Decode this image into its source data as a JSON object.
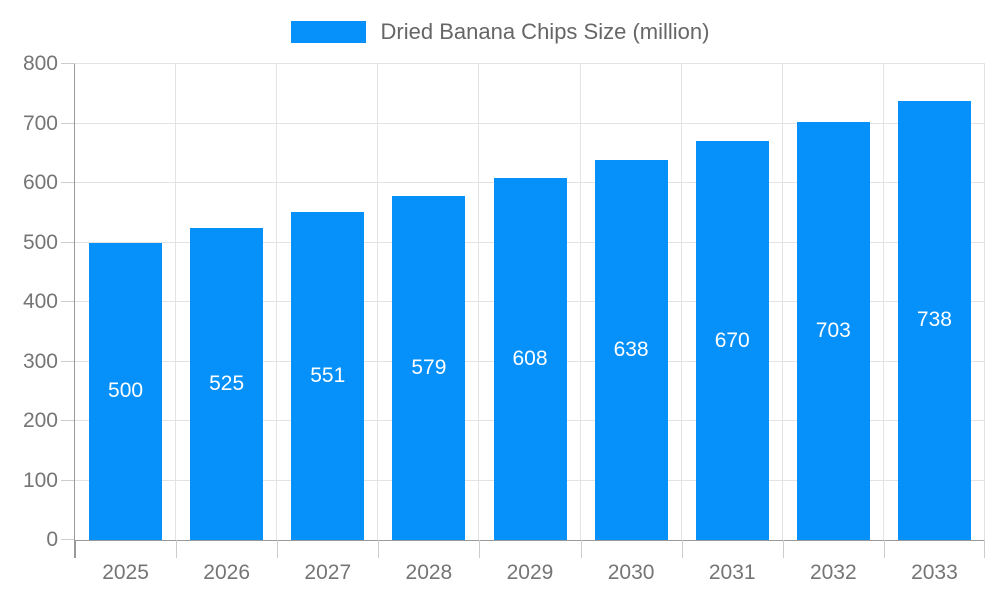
{
  "legend": {
    "label": "Dried Banana Chips Size (million)"
  },
  "chart_data": {
    "type": "bar",
    "title": "Dried Banana Chips Size (million)",
    "series_name": "Dried Banana Chips Size (million)",
    "categories": [
      "2025",
      "2026",
      "2027",
      "2028",
      "2029",
      "2030",
      "2031",
      "2032",
      "2033"
    ],
    "values": [
      500,
      525,
      551,
      579,
      608,
      638,
      670,
      703,
      738
    ],
    "xlabel": "",
    "ylabel": "",
    "ylim": [
      0,
      800
    ],
    "yticks": [
      0,
      100,
      200,
      300,
      400,
      500,
      600,
      700,
      800
    ],
    "grid": true,
    "legend_position": "top-center",
    "value_labels": "inside-middle",
    "colors": {
      "bar": "#0590FA",
      "value_label": "#FFFFFF",
      "axis_label": "#757575",
      "legend_text": "#666666",
      "gridline": "#E3E3E3",
      "axis_line": "#999999",
      "tick_mark": "#CCCCCC",
      "background": "#FFFFFF"
    }
  }
}
